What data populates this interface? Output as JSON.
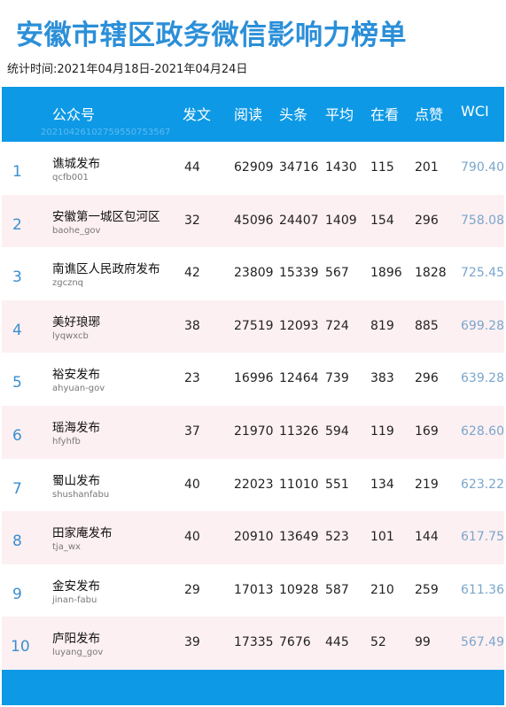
{
  "page": {
    "title": "安徽市辖区政务微信影响力榜单",
    "period": "统计时间:2021年04月18日-2021年04月24日"
  },
  "table": {
    "headers": {
      "account": "公众号",
      "posts": "发文",
      "reads": "阅读",
      "headline": "头条",
      "average": "平均",
      "watching": "在看",
      "likes": "点赞",
      "wci": "WCI"
    },
    "report_id": "20210426102759550753567",
    "rows": [
      {
        "rank": "1",
        "name": "谯城发布",
        "account": "qcfb001",
        "posts": "44",
        "reads": "62909",
        "headline": "34716",
        "average": "1430",
        "watching": "115",
        "likes": "201",
        "wci": "790.40"
      },
      {
        "rank": "2",
        "name": "安徽第一城区包河区",
        "account": "baohe_gov",
        "posts": "32",
        "reads": "45096",
        "headline": "24407",
        "average": "1409",
        "watching": "154",
        "likes": "296",
        "wci": "758.08"
      },
      {
        "rank": "3",
        "name": "南谯区人民政府发布",
        "account": "zgcznq",
        "posts": "42",
        "reads": "23809",
        "headline": "15339",
        "average": "567",
        "watching": "1896",
        "likes": "1828",
        "wci": "725.45"
      },
      {
        "rank": "4",
        "name": "美好琅琊",
        "account": "lyqwxcb",
        "posts": "38",
        "reads": "27519",
        "headline": "12093",
        "average": "724",
        "watching": "819",
        "likes": "885",
        "wci": "699.28"
      },
      {
        "rank": "5",
        "name": "裕安发布",
        "account": "ahyuan-gov",
        "posts": "23",
        "reads": "16996",
        "headline": "12464",
        "average": "739",
        "watching": "383",
        "likes": "296",
        "wci": "639.28"
      },
      {
        "rank": "6",
        "name": "瑶海发布",
        "account": "hfyhfb",
        "posts": "37",
        "reads": "21970",
        "headline": "11326",
        "average": "594",
        "watching": "119",
        "likes": "169",
        "wci": "628.60"
      },
      {
        "rank": "7",
        "name": "蜀山发布",
        "account": "shushanfabu",
        "posts": "40",
        "reads": "22023",
        "headline": "11010",
        "average": "551",
        "watching": "134",
        "likes": "219",
        "wci": "623.22"
      },
      {
        "rank": "8",
        "name": "田家庵发布",
        "account": "tja_wx",
        "posts": "40",
        "reads": "20910",
        "headline": "13649",
        "average": "523",
        "watching": "101",
        "likes": "144",
        "wci": "617.75"
      },
      {
        "rank": "9",
        "name": "金安发布",
        "account": "jinan-fabu",
        "posts": "29",
        "reads": "17013",
        "headline": "10928",
        "average": "587",
        "watching": "210",
        "likes": "259",
        "wci": "611.36"
      },
      {
        "rank": "10",
        "name": "庐阳发布",
        "account": "luyang_gov",
        "posts": "39",
        "reads": "17335",
        "headline": "7676",
        "average": "445",
        "watching": "52",
        "likes": "99",
        "wci": "567.49"
      }
    ]
  }
}
